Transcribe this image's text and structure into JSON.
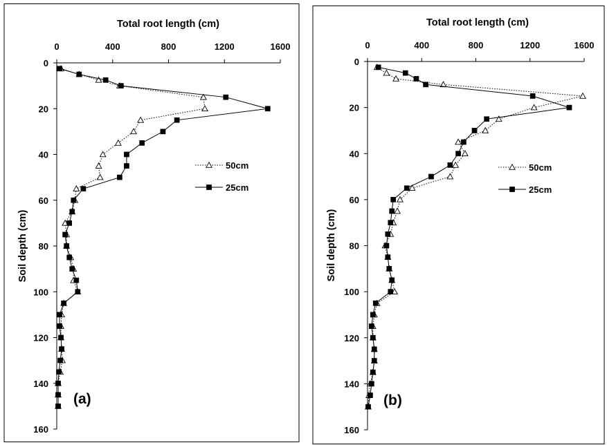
{
  "chart_data": [
    {
      "type": "line",
      "panel_label": "(a)",
      "xlabel": "Total root length (cm)",
      "ylabel": "Soil depth (cm)",
      "x_axis_position": "top",
      "y_inverted": true,
      "xlim": [
        0,
        1600
      ],
      "ylim": [
        0,
        160
      ],
      "x_ticks": [
        0,
        400,
        800,
        1200,
        1600
      ],
      "y_ticks": [
        0,
        20,
        40,
        60,
        80,
        100,
        120,
        140,
        160
      ],
      "grid": false,
      "legend_position": "right-middle",
      "series": [
        {
          "name": "50cm",
          "marker": "open-triangle",
          "line": "dotted",
          "points": [
            [
              30,
              2.5
            ],
            [
              160,
              5
            ],
            [
              300,
              7.5
            ],
            [
              450,
              10
            ],
            [
              1050,
              15
            ],
            [
              1060,
              20
            ],
            [
              600,
              25
            ],
            [
              550,
              30
            ],
            [
              440,
              35
            ],
            [
              330,
              40
            ],
            [
              300,
              45
            ],
            [
              310,
              50
            ],
            [
              140,
              55
            ],
            [
              130,
              60
            ],
            [
              110,
              65
            ],
            [
              60,
              70
            ],
            [
              70,
              75
            ],
            [
              70,
              80
            ],
            [
              100,
              85
            ],
            [
              120,
              90
            ],
            [
              120,
              95
            ],
            [
              150,
              100
            ],
            [
              50,
              105
            ],
            [
              35,
              110
            ],
            [
              30,
              115
            ],
            [
              30,
              120
            ],
            [
              35,
              125
            ],
            [
              40,
              130
            ],
            [
              25,
              135
            ],
            [
              10,
              140
            ],
            [
              10,
              145
            ],
            [
              10,
              150
            ]
          ]
        },
        {
          "name": "25cm",
          "marker": "filled-square",
          "line": "solid",
          "points": [
            [
              20,
              2.5
            ],
            [
              160,
              5
            ],
            [
              350,
              7.5
            ],
            [
              460,
              10
            ],
            [
              1210,
              15
            ],
            [
              1510,
              20
            ],
            [
              860,
              25
            ],
            [
              760,
              30
            ],
            [
              610,
              35
            ],
            [
              500,
              40
            ],
            [
              500,
              45
            ],
            [
              450,
              50
            ],
            [
              190,
              55
            ],
            [
              120,
              60
            ],
            [
              110,
              65
            ],
            [
              90,
              70
            ],
            [
              60,
              75
            ],
            [
              70,
              80
            ],
            [
              90,
              85
            ],
            [
              110,
              90
            ],
            [
              140,
              95
            ],
            [
              150,
              100
            ],
            [
              50,
              105
            ],
            [
              20,
              110
            ],
            [
              20,
              115
            ],
            [
              30,
              120
            ],
            [
              35,
              125
            ],
            [
              25,
              130
            ],
            [
              15,
              135
            ],
            [
              10,
              140
            ],
            [
              10,
              145
            ],
            [
              10,
              150
            ]
          ]
        }
      ]
    },
    {
      "type": "line",
      "panel_label": "(b)",
      "xlabel": "Total root length (cm)",
      "ylabel": "Soil depth (cm)",
      "x_axis_position": "top",
      "y_inverted": true,
      "xlim": [
        0,
        1600
      ],
      "ylim": [
        0,
        160
      ],
      "x_ticks": [
        0,
        400,
        800,
        1200,
        1600
      ],
      "y_ticks": [
        0,
        20,
        40,
        60,
        80,
        100,
        120,
        140,
        160
      ],
      "grid": false,
      "legend_position": "right-middle",
      "series": [
        {
          "name": "50cm",
          "marker": "open-triangle",
          "line": "dotted",
          "points": [
            [
              70,
              2.5
            ],
            [
              140,
              5
            ],
            [
              210,
              7.5
            ],
            [
              560,
              10
            ],
            [
              1590,
              15
            ],
            [
              1230,
              20
            ],
            [
              970,
              25
            ],
            [
              870,
              30
            ],
            [
              670,
              35
            ],
            [
              720,
              40
            ],
            [
              650,
              45
            ],
            [
              610,
              50
            ],
            [
              330,
              55
            ],
            [
              240,
              60
            ],
            [
              220,
              65
            ],
            [
              190,
              70
            ],
            [
              170,
              75
            ],
            [
              130,
              80
            ],
            [
              150,
              85
            ],
            [
              160,
              90
            ],
            [
              180,
              95
            ],
            [
              200,
              100
            ],
            [
              70,
              105
            ],
            [
              50,
              110
            ],
            [
              40,
              115
            ],
            [
              40,
              120
            ],
            [
              50,
              125
            ],
            [
              50,
              130
            ],
            [
              40,
              135
            ],
            [
              20,
              140
            ],
            [
              10,
              145
            ],
            [
              5,
              150
            ]
          ]
        },
        {
          "name": "25cm",
          "marker": "filled-square",
          "line": "solid",
          "points": [
            [
              80,
              2.5
            ],
            [
              280,
              5
            ],
            [
              360,
              7.5
            ],
            [
              430,
              10
            ],
            [
              1220,
              15
            ],
            [
              1490,
              20
            ],
            [
              880,
              25
            ],
            [
              790,
              30
            ],
            [
              710,
              35
            ],
            [
              670,
              40
            ],
            [
              610,
              45
            ],
            [
              470,
              50
            ],
            [
              290,
              55
            ],
            [
              190,
              60
            ],
            [
              180,
              65
            ],
            [
              170,
              70
            ],
            [
              150,
              75
            ],
            [
              140,
              80
            ],
            [
              150,
              85
            ],
            [
              160,
              90
            ],
            [
              180,
              95
            ],
            [
              170,
              100
            ],
            [
              60,
              105
            ],
            [
              40,
              110
            ],
            [
              30,
              115
            ],
            [
              40,
              120
            ],
            [
              50,
              125
            ],
            [
              50,
              130
            ],
            [
              40,
              135
            ],
            [
              30,
              140
            ],
            [
              20,
              145
            ],
            [
              5,
              150
            ]
          ]
        }
      ]
    }
  ]
}
